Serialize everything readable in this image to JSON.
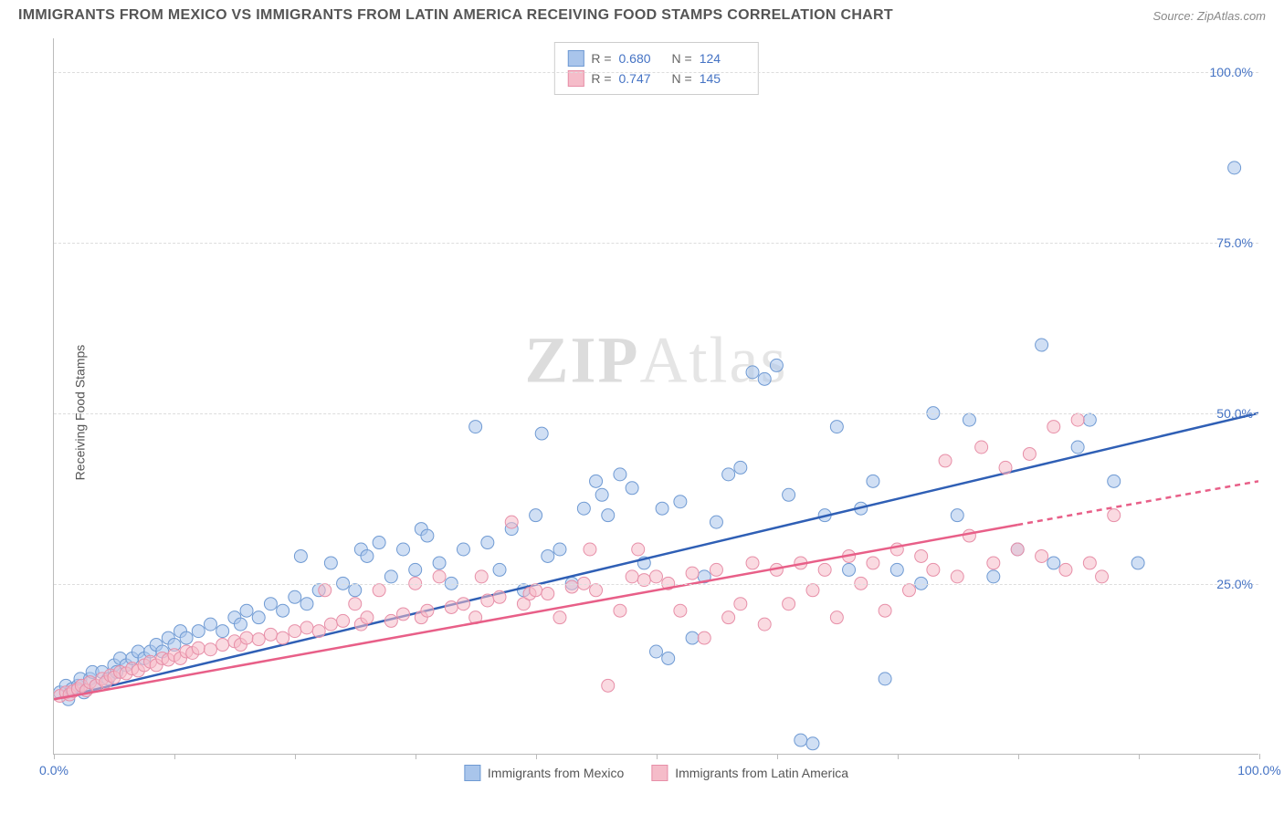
{
  "title": "IMMIGRANTS FROM MEXICO VS IMMIGRANTS FROM LATIN AMERICA RECEIVING FOOD STAMPS CORRELATION CHART",
  "source": "Source: ZipAtlas.com",
  "ylabel": "Receiving Food Stamps",
  "watermark_a": "ZIP",
  "watermark_b": "Atlas",
  "chart": {
    "type": "scatter",
    "xlim": [
      0,
      100
    ],
    "ylim": [
      0,
      105
    ],
    "xtick_positions": [
      0,
      10,
      20,
      30,
      40,
      50,
      60,
      70,
      80,
      90,
      100
    ],
    "xtick_labels": {
      "0": "0.0%",
      "100": "100.0%"
    },
    "ytick_positions": [
      25,
      50,
      75,
      100
    ],
    "ytick_labels": [
      "25.0%",
      "50.0%",
      "75.0%",
      "100.0%"
    ],
    "grid_color": "#dddddd",
    "background_color": "#ffffff",
    "marker_radius": 7,
    "marker_opacity": 0.55,
    "series": [
      {
        "name": "Immigrants from Mexico",
        "color_fill": "#a9c5eb",
        "color_stroke": "#6f9ad3",
        "trend_color": "#2f5fb5",
        "trend_width": 2.5,
        "trend_start": [
          0,
          8
        ],
        "trend_end": [
          100,
          50
        ],
        "trend_dash_from_x": null,
        "stats": {
          "R": "0.680",
          "N": "124"
        },
        "points": [
          [
            0.5,
            9
          ],
          [
            1,
            10
          ],
          [
            1.2,
            8
          ],
          [
            1.5,
            9.5
          ],
          [
            2,
            10
          ],
          [
            2.2,
            11
          ],
          [
            2.5,
            9
          ],
          [
            3,
            11
          ],
          [
            3.2,
            12
          ],
          [
            3.5,
            10
          ],
          [
            4,
            12
          ],
          [
            4.5,
            11
          ],
          [
            5,
            13
          ],
          [
            5.2,
            12
          ],
          [
            5.5,
            14
          ],
          [
            6,
            13
          ],
          [
            6.5,
            14
          ],
          [
            7,
            15
          ],
          [
            7.5,
            14
          ],
          [
            8,
            15
          ],
          [
            8.5,
            16
          ],
          [
            9,
            15
          ],
          [
            9.5,
            17
          ],
          [
            10,
            16
          ],
          [
            10.5,
            18
          ],
          [
            11,
            17
          ],
          [
            12,
            18
          ],
          [
            13,
            19
          ],
          [
            14,
            18
          ],
          [
            15,
            20
          ],
          [
            15.5,
            19
          ],
          [
            16,
            21
          ],
          [
            17,
            20
          ],
          [
            18,
            22
          ],
          [
            19,
            21
          ],
          [
            20,
            23
          ],
          [
            20.5,
            29
          ],
          [
            21,
            22
          ],
          [
            22,
            24
          ],
          [
            23,
            28
          ],
          [
            24,
            25
          ],
          [
            25,
            24
          ],
          [
            25.5,
            30
          ],
          [
            26,
            29
          ],
          [
            27,
            31
          ],
          [
            28,
            26
          ],
          [
            29,
            30
          ],
          [
            30,
            27
          ],
          [
            30.5,
            33
          ],
          [
            31,
            32
          ],
          [
            32,
            28
          ],
          [
            33,
            25
          ],
          [
            34,
            30
          ],
          [
            35,
            48
          ],
          [
            36,
            31
          ],
          [
            37,
            27
          ],
          [
            38,
            33
          ],
          [
            39,
            24
          ],
          [
            40,
            35
          ],
          [
            40.5,
            47
          ],
          [
            41,
            29
          ],
          [
            42,
            30
          ],
          [
            43,
            25
          ],
          [
            44,
            36
          ],
          [
            45,
            40
          ],
          [
            45.5,
            38
          ],
          [
            46,
            35
          ],
          [
            47,
            41
          ],
          [
            48,
            39
          ],
          [
            49,
            28
          ],
          [
            50,
            15
          ],
          [
            50.5,
            36
          ],
          [
            51,
            14
          ],
          [
            52,
            37
          ],
          [
            53,
            17
          ],
          [
            54,
            26
          ],
          [
            55,
            34
          ],
          [
            56,
            41
          ],
          [
            57,
            42
          ],
          [
            58,
            56
          ],
          [
            59,
            55
          ],
          [
            60,
            57
          ],
          [
            61,
            38
          ],
          [
            62,
            2
          ],
          [
            63,
            1.5
          ],
          [
            64,
            35
          ],
          [
            65,
            48
          ],
          [
            66,
            27
          ],
          [
            67,
            36
          ],
          [
            68,
            40
          ],
          [
            69,
            11
          ],
          [
            70,
            27
          ],
          [
            72,
            25
          ],
          [
            73,
            50
          ],
          [
            75,
            35
          ],
          [
            76,
            49
          ],
          [
            78,
            26
          ],
          [
            80,
            30
          ],
          [
            82,
            60
          ],
          [
            83,
            28
          ],
          [
            85,
            45
          ],
          [
            86,
            49
          ],
          [
            88,
            40
          ],
          [
            90,
            28
          ],
          [
            98,
            86
          ]
        ]
      },
      {
        "name": "Immigrants from Latin America",
        "color_fill": "#f5bcc9",
        "color_stroke": "#e78fa8",
        "trend_color": "#e85f88",
        "trend_width": 2.5,
        "trend_start": [
          0,
          8
        ],
        "trend_end": [
          100,
          40
        ],
        "trend_dash_from_x": 80,
        "stats": {
          "R": "0.747",
          "N": "145"
        },
        "points": [
          [
            0.5,
            8.5
          ],
          [
            1,
            9
          ],
          [
            1.3,
            8.7
          ],
          [
            1.6,
            9.2
          ],
          [
            2,
            9.5
          ],
          [
            2.3,
            10
          ],
          [
            2.7,
            9.3
          ],
          [
            3,
            10.5
          ],
          [
            3.5,
            10
          ],
          [
            4,
            11
          ],
          [
            4.3,
            10.5
          ],
          [
            4.7,
            11.5
          ],
          [
            5,
            11.2
          ],
          [
            5.5,
            12
          ],
          [
            6,
            11.8
          ],
          [
            6.5,
            12.5
          ],
          [
            7,
            12.2
          ],
          [
            7.5,
            13
          ],
          [
            8,
            13.5
          ],
          [
            8.5,
            13
          ],
          [
            9,
            14
          ],
          [
            9.5,
            13.8
          ],
          [
            10,
            14.5
          ],
          [
            10.5,
            14
          ],
          [
            11,
            15
          ],
          [
            11.5,
            14.8
          ],
          [
            12,
            15.5
          ],
          [
            13,
            15.3
          ],
          [
            14,
            16
          ],
          [
            15,
            16.5
          ],
          [
            15.5,
            16
          ],
          [
            16,
            17
          ],
          [
            17,
            16.8
          ],
          [
            18,
            17.5
          ],
          [
            19,
            17
          ],
          [
            20,
            18
          ],
          [
            21,
            18.5
          ],
          [
            22,
            18
          ],
          [
            22.5,
            24
          ],
          [
            23,
            19
          ],
          [
            24,
            19.5
          ],
          [
            25,
            22
          ],
          [
            25.5,
            19
          ],
          [
            26,
            20
          ],
          [
            27,
            24
          ],
          [
            28,
            19.5
          ],
          [
            29,
            20.5
          ],
          [
            30,
            25
          ],
          [
            30.5,
            20
          ],
          [
            31,
            21
          ],
          [
            32,
            26
          ],
          [
            33,
            21.5
          ],
          [
            34,
            22
          ],
          [
            35,
            20
          ],
          [
            35.5,
            26
          ],
          [
            36,
            22.5
          ],
          [
            37,
            23
          ],
          [
            38,
            34
          ],
          [
            39,
            22
          ],
          [
            39.5,
            23.5
          ],
          [
            40,
            24
          ],
          [
            41,
            23.5
          ],
          [
            42,
            20
          ],
          [
            43,
            24.5
          ],
          [
            44,
            25
          ],
          [
            44.5,
            30
          ],
          [
            45,
            24
          ],
          [
            46,
            10
          ],
          [
            47,
            21
          ],
          [
            48,
            26
          ],
          [
            48.5,
            30
          ],
          [
            49,
            25.5
          ],
          [
            50,
            26
          ],
          [
            51,
            25
          ],
          [
            52,
            21
          ],
          [
            53,
            26.5
          ],
          [
            54,
            17
          ],
          [
            55,
            27
          ],
          [
            56,
            20
          ],
          [
            57,
            22
          ],
          [
            58,
            28
          ],
          [
            59,
            19
          ],
          [
            60,
            27
          ],
          [
            61,
            22
          ],
          [
            62,
            28
          ],
          [
            63,
            24
          ],
          [
            64,
            27
          ],
          [
            65,
            20
          ],
          [
            66,
            29
          ],
          [
            67,
            25
          ],
          [
            68,
            28
          ],
          [
            69,
            21
          ],
          [
            70,
            30
          ],
          [
            71,
            24
          ],
          [
            72,
            29
          ],
          [
            73,
            27
          ],
          [
            74,
            43
          ],
          [
            75,
            26
          ],
          [
            76,
            32
          ],
          [
            77,
            45
          ],
          [
            78,
            28
          ],
          [
            79,
            42
          ],
          [
            80,
            30
          ],
          [
            81,
            44
          ],
          [
            82,
            29
          ],
          [
            83,
            48
          ],
          [
            84,
            27
          ],
          [
            85,
            49
          ],
          [
            86,
            28
          ],
          [
            87,
            26
          ],
          [
            88,
            35
          ]
        ]
      }
    ]
  },
  "legend_labels": {
    "r": "R =",
    "n": "N ="
  }
}
